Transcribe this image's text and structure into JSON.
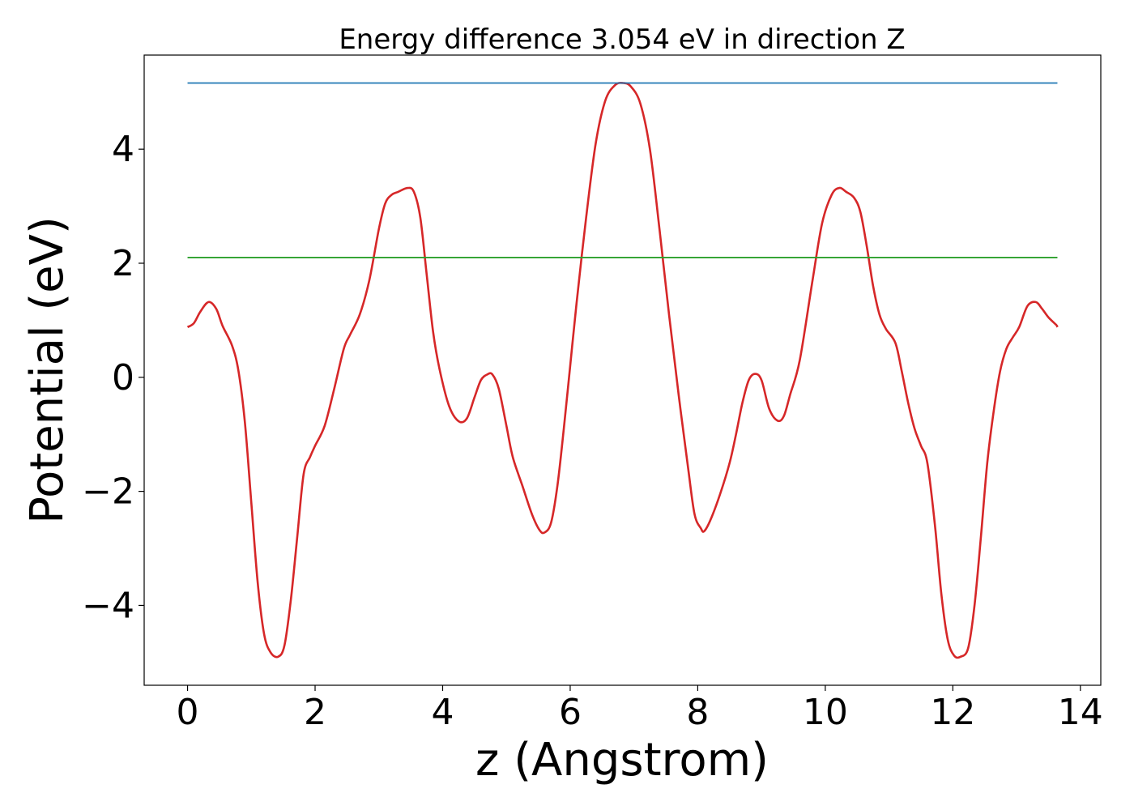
{
  "chart_data": {
    "type": "line",
    "title": "Energy difference 3.054 eV in direction Z",
    "xlabel": "z (Angstrom)",
    "ylabel": "Potential (eV)",
    "xlim": [
      -0.68,
      14.32
    ],
    "ylim": [
      -5.4,
      5.65
    ],
    "xticks": [
      0,
      2,
      4,
      6,
      8,
      10,
      12,
      14
    ],
    "xtick_labels": [
      "0",
      "2",
      "4",
      "6",
      "8",
      "10",
      "12",
      "14"
    ],
    "yticks": [
      -4,
      -2,
      0,
      2,
      4
    ],
    "ytick_labels": [
      "−4",
      "−2",
      "0",
      "2",
      "4"
    ],
    "grid": false,
    "legend": "none",
    "series": [
      {
        "color": "#d62728",
        "x": [
          0,
          0.1,
          0.2,
          0.33,
          0.45,
          0.55,
          0.7,
          0.8,
          0.9,
          1.0,
          1.1,
          1.2,
          1.3,
          1.42,
          1.52,
          1.62,
          1.72,
          1.82,
          1.92,
          2.0,
          2.15,
          2.3,
          2.45,
          2.55,
          2.7,
          2.85,
          3.0,
          3.1,
          3.2,
          3.3,
          3.45,
          3.55,
          3.65,
          3.75,
          3.85,
          3.95,
          4.1,
          4.25,
          4.38,
          4.5,
          4.6,
          4.7,
          4.78,
          4.88,
          5.0,
          5.1,
          5.25,
          5.4,
          5.52,
          5.6,
          5.7,
          5.8,
          5.9,
          6.0,
          6.1,
          6.25,
          6.4,
          6.55,
          6.7,
          6.83,
          6.95,
          7.1,
          7.25,
          7.4,
          7.55,
          7.7,
          7.85,
          7.95,
          8.05,
          8.1,
          8.2,
          8.35,
          8.5,
          8.6,
          8.7,
          8.8,
          8.9,
          9.0,
          9.12,
          9.25,
          9.35,
          9.45,
          9.6,
          9.8,
          9.95,
          10.1,
          10.22,
          10.33,
          10.45,
          10.55,
          10.65,
          10.75,
          10.85,
          10.95,
          11.1,
          11.2,
          11.3,
          11.4,
          11.5,
          11.6,
          11.72,
          11.82,
          11.92,
          12.02,
          12.12,
          12.24,
          12.34,
          12.44,
          12.54,
          12.64,
          12.74,
          12.84,
          12.94,
          13.04,
          13.17,
          13.3,
          13.4,
          13.5,
          13.62,
          13.64
        ],
        "values": [
          0.88,
          0.95,
          1.15,
          1.32,
          1.2,
          0.9,
          0.55,
          0.1,
          -0.8,
          -2.2,
          -3.6,
          -4.5,
          -4.82,
          -4.9,
          -4.7,
          -3.9,
          -2.8,
          -1.7,
          -1.4,
          -1.2,
          -0.85,
          -0.2,
          0.5,
          0.75,
          1.1,
          1.7,
          2.6,
          3.05,
          3.2,
          3.25,
          3.32,
          3.25,
          2.8,
          1.8,
          0.8,
          0.15,
          -0.5,
          -0.77,
          -0.72,
          -0.35,
          -0.05,
          0.05,
          0.05,
          -0.2,
          -0.85,
          -1.4,
          -1.9,
          -2.4,
          -2.68,
          -2.72,
          -2.55,
          -1.9,
          -0.9,
          0.2,
          1.3,
          2.8,
          4.1,
          4.85,
          5.12,
          5.16,
          5.1,
          4.8,
          4.0,
          2.6,
          1.1,
          -0.3,
          -1.6,
          -2.4,
          -2.65,
          -2.7,
          -2.5,
          -2.05,
          -1.5,
          -1.0,
          -0.45,
          -0.05,
          0.06,
          -0.05,
          -0.55,
          -0.76,
          -0.68,
          -0.3,
          0.3,
          1.7,
          2.7,
          3.2,
          3.32,
          3.25,
          3.15,
          2.9,
          2.3,
          1.6,
          1.1,
          0.85,
          0.6,
          0.1,
          -0.45,
          -0.9,
          -1.2,
          -1.5,
          -2.6,
          -3.8,
          -4.6,
          -4.88,
          -4.9,
          -4.75,
          -4.0,
          -2.8,
          -1.5,
          -0.6,
          0.1,
          0.5,
          0.7,
          0.88,
          1.25,
          1.32,
          1.2,
          1.05,
          0.92,
          0.88
        ]
      },
      {
        "color": "#1f77b4",
        "x": [
          0,
          13.64
        ],
        "values": [
          5.16,
          5.16
        ]
      },
      {
        "color": "#2ca02c",
        "x": [
          0,
          13.64
        ],
        "values": [
          2.1,
          2.1
        ]
      }
    ]
  }
}
